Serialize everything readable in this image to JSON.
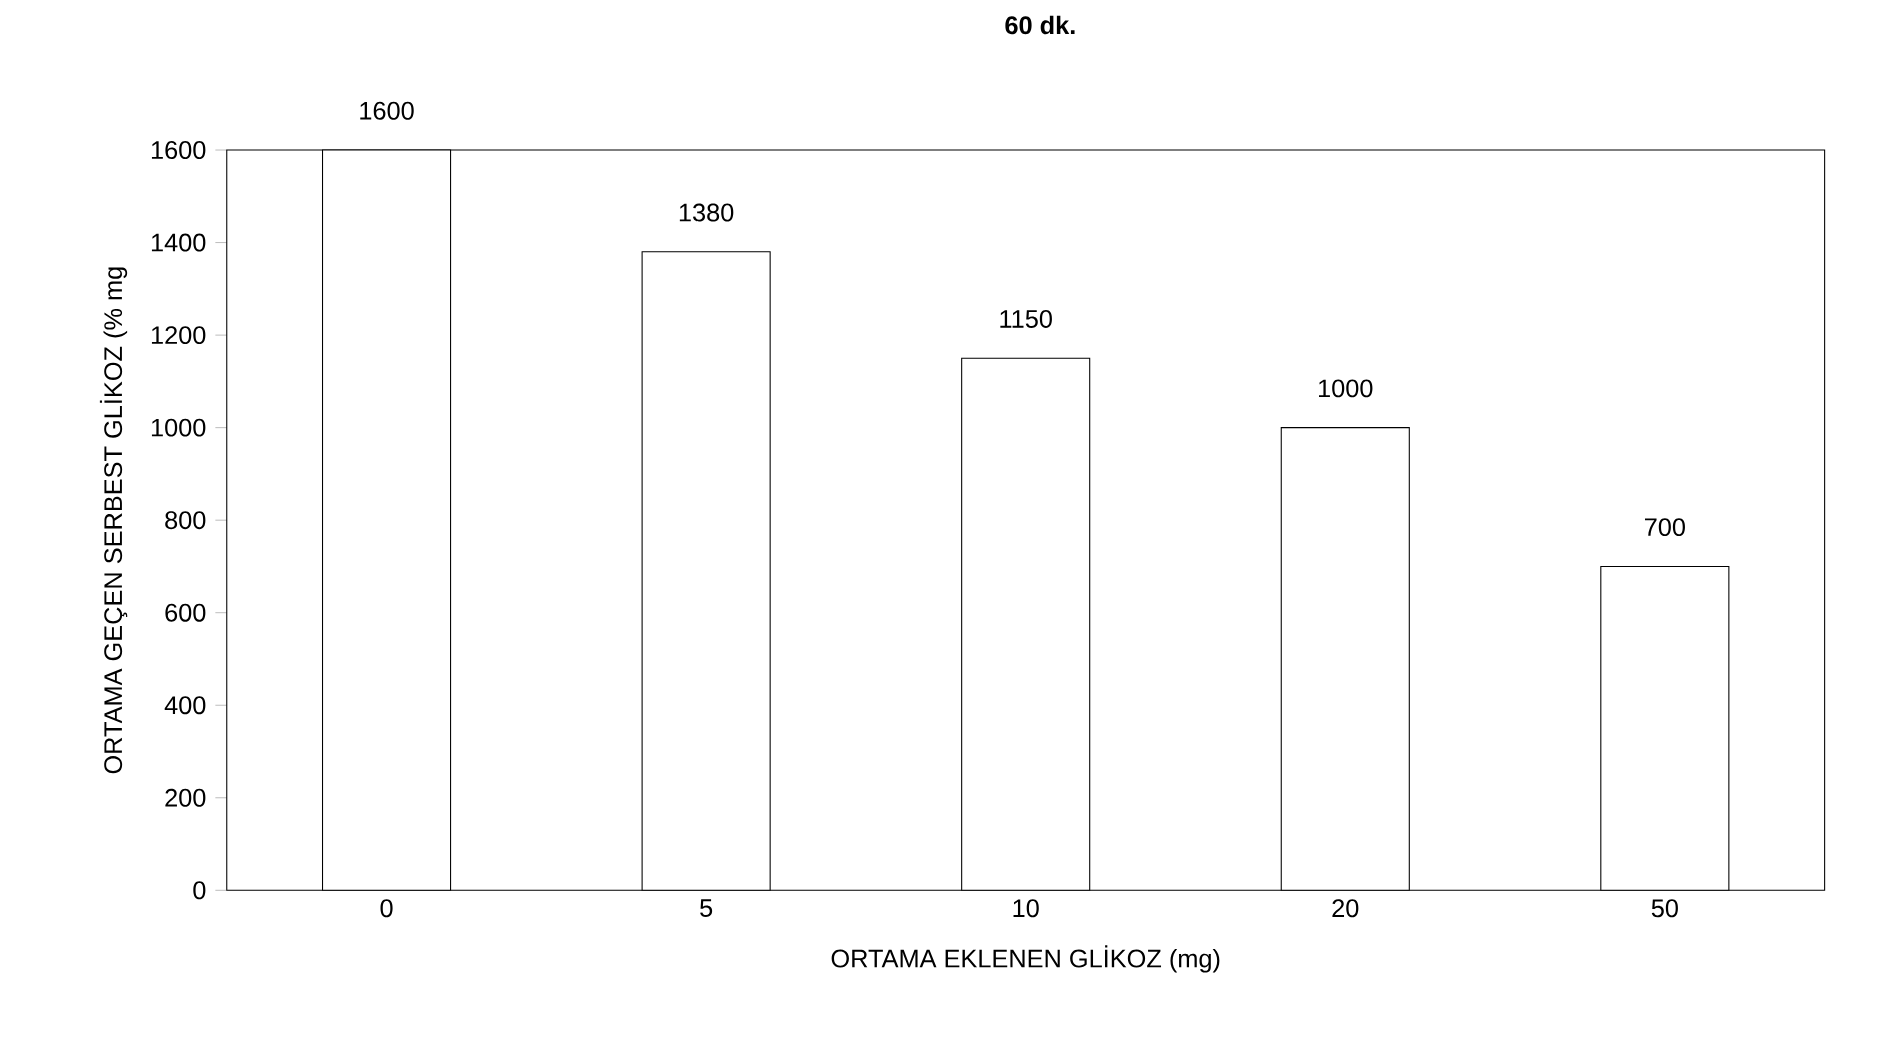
{
  "chart_data": {
    "type": "bar",
    "title": "60 dk.",
    "xlabel": "ORTAMA EKLENEN GLİKOZ (mg)",
    "ylabel": "ORTAMA GEÇEN SERBEST GLİKOZ (% mg",
    "categories": [
      "0",
      "5",
      "10",
      "20",
      "50"
    ],
    "values": [
      1600,
      1380,
      1150,
      1000,
      700
    ],
    "color": "#ffffff",
    "ylim": [
      0,
      1600
    ],
    "yticks": [
      0,
      200,
      400,
      600,
      800,
      1000,
      1200,
      1400,
      1600
    ],
    "data_labels": true,
    "grid": false
  }
}
